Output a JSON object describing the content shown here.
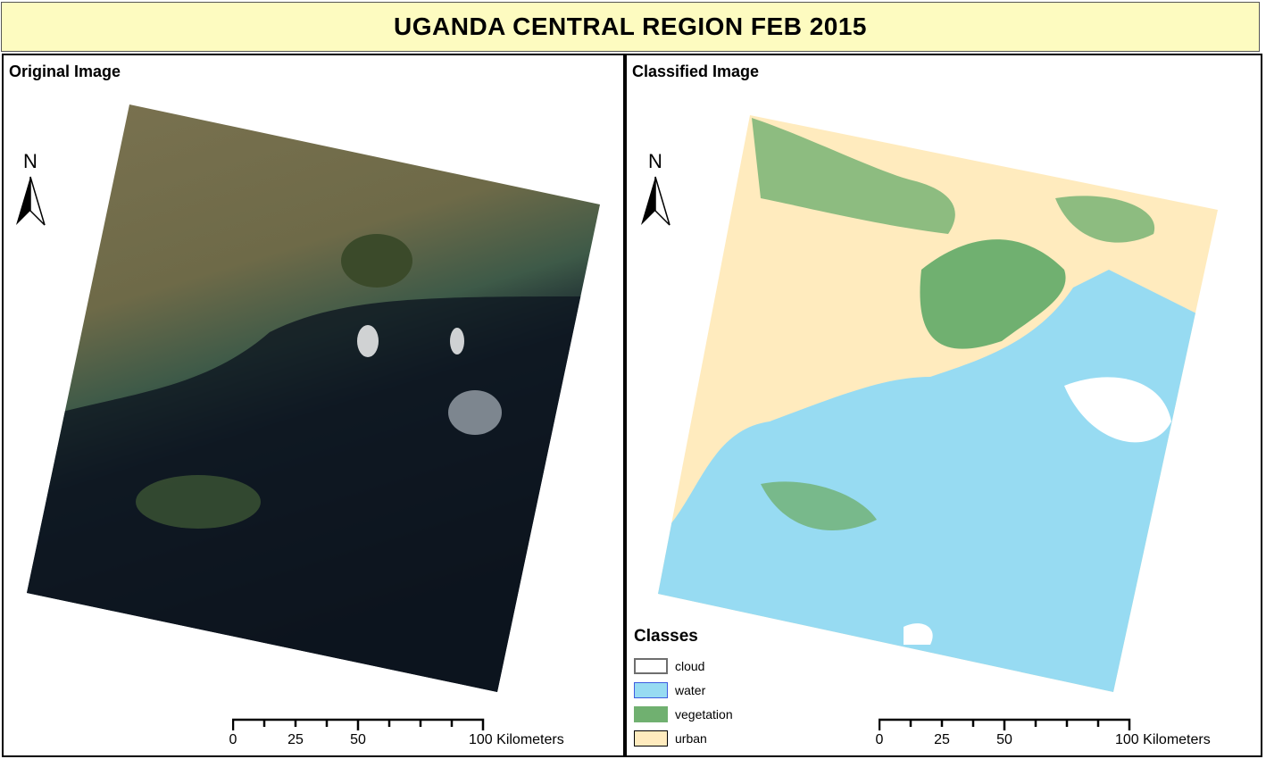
{
  "title": "UGANDA CENTRAL REGION FEB 2015",
  "left_panel": {
    "title": "Original Image",
    "north_label": "N"
  },
  "right_panel": {
    "title": "Classified Image",
    "north_label": "N"
  },
  "legend": {
    "title": "Classes",
    "items": [
      {
        "label": "cloud",
        "fill": "#ffffff",
        "border": "#6e6e6e"
      },
      {
        "label": "water",
        "fill": "#97dbf2",
        "border": "#3d5ce0"
      },
      {
        "label": "vegetation",
        "fill": "#70b070",
        "border": "#70b070"
      },
      {
        "label": "urban",
        "fill": "#ffebbe",
        "border": "#000000"
      }
    ]
  },
  "scale_bar": {
    "labels": [
      "0",
      "25",
      "50",
      "100 Kilometers"
    ],
    "values_km": [
      0,
      25,
      50,
      100
    ]
  },
  "colors": {
    "title_bg": "#fdfbc0",
    "water": "#97dbf2",
    "vegetation": "#70b070",
    "urban": "#ffebbe"
  }
}
